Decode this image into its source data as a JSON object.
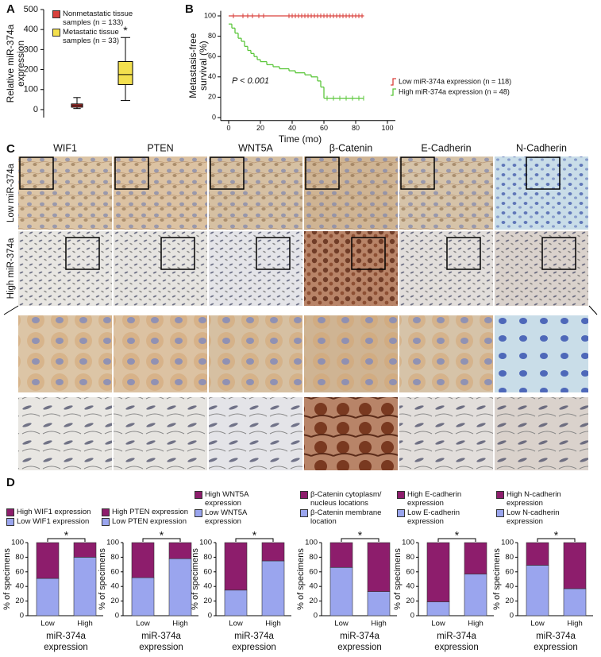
{
  "panel_labels": [
    "A",
    "B",
    "C",
    "D"
  ],
  "micrograph": {
    "columns": [
      "WIF1",
      "PTEN",
      "WNT5A",
      "β-Catenin",
      "E-Cadherin",
      "N-Cadherin"
    ],
    "rows": [
      "Low miR-374a",
      "High miR-374a"
    ]
  },
  "chart_data": [
    {
      "type": "box",
      "y_label": [
        "Relative miR-374a",
        "expression"
      ],
      "ylim": [
        -40,
        500
      ],
      "yticks": [
        0,
        100,
        200,
        300,
        400,
        500
      ],
      "annotation": "*",
      "series": [
        {
          "name": "Nonmetastatic tissue samples (n = 133)",
          "color": "#d9413c",
          "min": 5,
          "q1": 12,
          "median": 20,
          "q3": 28,
          "max": 60
        },
        {
          "name": "Metastatic tissue samples (n = 33)",
          "color": "#f3e04e",
          "min": 45,
          "q1": 125,
          "median": 175,
          "q3": 240,
          "max": 360
        }
      ]
    },
    {
      "type": "survival",
      "x_label": "Time (mo)",
      "y_label": [
        "Metastasis-free",
        "survival (%)"
      ],
      "annotation": "P < 0.001",
      "xlim": [
        -5,
        105
      ],
      "ylim": [
        -3,
        105
      ],
      "xticks": [
        0,
        20,
        40,
        60,
        80,
        100
      ],
      "yticks": [
        0,
        20,
        40,
        60,
        80,
        100
      ],
      "series": [
        {
          "name": "Low miR-374a expression (n = 118)",
          "color": "#d9413c",
          "x": [
            0,
            85
          ],
          "values": [
            100,
            100
          ],
          "censored_x": [
            3,
            9,
            12,
            15,
            19,
            22,
            38,
            40,
            42,
            44,
            46,
            48,
            50,
            52,
            54,
            56,
            58,
            60,
            62,
            64,
            66,
            68,
            70,
            72,
            74,
            76,
            78,
            80,
            82,
            84
          ],
          "censored_y": [
            100,
            100,
            100,
            100,
            100,
            100,
            100,
            100,
            100,
            100,
            100,
            100,
            100,
            100,
            100,
            100,
            100,
            100,
            100,
            100,
            100,
            100,
            100,
            100,
            100,
            100,
            100,
            100,
            100,
            100
          ]
        },
        {
          "name": "High miR-374a expression (n = 48)",
          "color": "#5cc73c",
          "x": [
            0,
            2,
            4,
            6,
            8,
            10,
            12,
            14,
            16,
            18,
            20,
            24,
            28,
            32,
            38,
            42,
            48,
            52,
            56,
            58,
            60,
            85
          ],
          "values": [
            92,
            88,
            83,
            78,
            75,
            70,
            66,
            63,
            60,
            57,
            55,
            52,
            50,
            48,
            46,
            44,
            42,
            40,
            36,
            30,
            19,
            19
          ],
          "censored_x": [
            62,
            66,
            70,
            74,
            78,
            82,
            85
          ],
          "censored_y": [
            19,
            19,
            19,
            19,
            19,
            19,
            19
          ]
        }
      ]
    },
    {
      "type": "stacked_bar",
      "categories": [
        "Low",
        "High"
      ],
      "x_label": [
        "miR-374a",
        "expression"
      ],
      "y_label": "% of specimens",
      "ylim": [
        0,
        100
      ],
      "yticks": [
        0,
        20,
        40,
        60,
        80,
        100
      ],
      "annotation": "*",
      "series": [
        {
          "name": "Low WIF1 expression",
          "color": "#9aa5ee",
          "values": [
            51,
            80
          ]
        },
        {
          "name": "High WIF1 expression",
          "color": "#8d1d6c",
          "values": [
            49,
            20
          ]
        }
      ]
    },
    {
      "type": "stacked_bar",
      "categories": [
        "Low",
        "High"
      ],
      "x_label": [
        "miR-374a",
        "expression"
      ],
      "y_label": "% of specimens",
      "ylim": [
        0,
        100
      ],
      "yticks": [
        0,
        20,
        40,
        60,
        80,
        100
      ],
      "annotation": "*",
      "series": [
        {
          "name": "Low PTEN expression",
          "color": "#9aa5ee",
          "values": [
            52,
            78
          ]
        },
        {
          "name": "High PTEN expression",
          "color": "#8d1d6c",
          "values": [
            48,
            22
          ]
        }
      ]
    },
    {
      "type": "stacked_bar",
      "categories": [
        "Low",
        "High"
      ],
      "x_label": [
        "miR-374a",
        "expression"
      ],
      "y_label": "% of specimens",
      "ylim": [
        0,
        100
      ],
      "yticks": [
        0,
        20,
        40,
        60,
        80,
        100
      ],
      "annotation": "*",
      "series": [
        {
          "name": "Low WNT5A expression",
          "color": "#9aa5ee",
          "values": [
            35,
            75
          ]
        },
        {
          "name": "High WNT5A expression",
          "color": "#8d1d6c",
          "values": [
            65,
            25
          ]
        }
      ]
    },
    {
      "type": "stacked_bar",
      "categories": [
        "Low",
        "High"
      ],
      "x_label": [
        "miR-374a",
        "expression"
      ],
      "y_label": "% of specimens",
      "ylim": [
        0,
        100
      ],
      "yticks": [
        0,
        20,
        40,
        60,
        80,
        100
      ],
      "annotation": "*",
      "series": [
        {
          "name": "β-Catenin membrane location",
          "color": "#9aa5ee",
          "values": [
            66,
            33
          ]
        },
        {
          "name": "β-Catenin cytoplasm/ nucleus locations",
          "color": "#8d1d6c",
          "values": [
            34,
            67
          ]
        }
      ]
    },
    {
      "type": "stacked_bar",
      "categories": [
        "Low",
        "High"
      ],
      "x_label": [
        "miR-374a",
        "expression"
      ],
      "y_label": "% of specimens",
      "ylim": [
        0,
        100
      ],
      "yticks": [
        0,
        20,
        40,
        60,
        80,
        100
      ],
      "annotation": "*",
      "series": [
        {
          "name": "Low E-cadherin expression",
          "color": "#9aa5ee",
          "values": [
            19,
            57
          ]
        },
        {
          "name": "High E-cadherin expression",
          "color": "#8d1d6c",
          "values": [
            81,
            43
          ]
        }
      ]
    },
    {
      "type": "stacked_bar",
      "categories": [
        "Low",
        "High"
      ],
      "x_label": [
        "miR-374a",
        "expression"
      ],
      "y_label": "% of specimens",
      "ylim": [
        0,
        100
      ],
      "yticks": [
        0,
        20,
        40,
        60,
        80,
        100
      ],
      "annotation": "*",
      "series": [
        {
          "name": "Low N-cadherin expression",
          "color": "#9aa5ee",
          "values": [
            69,
            37
          ]
        },
        {
          "name": "High N-cadherin expression",
          "color": "#8d1d6c",
          "values": [
            31,
            63
          ]
        }
      ]
    }
  ]
}
